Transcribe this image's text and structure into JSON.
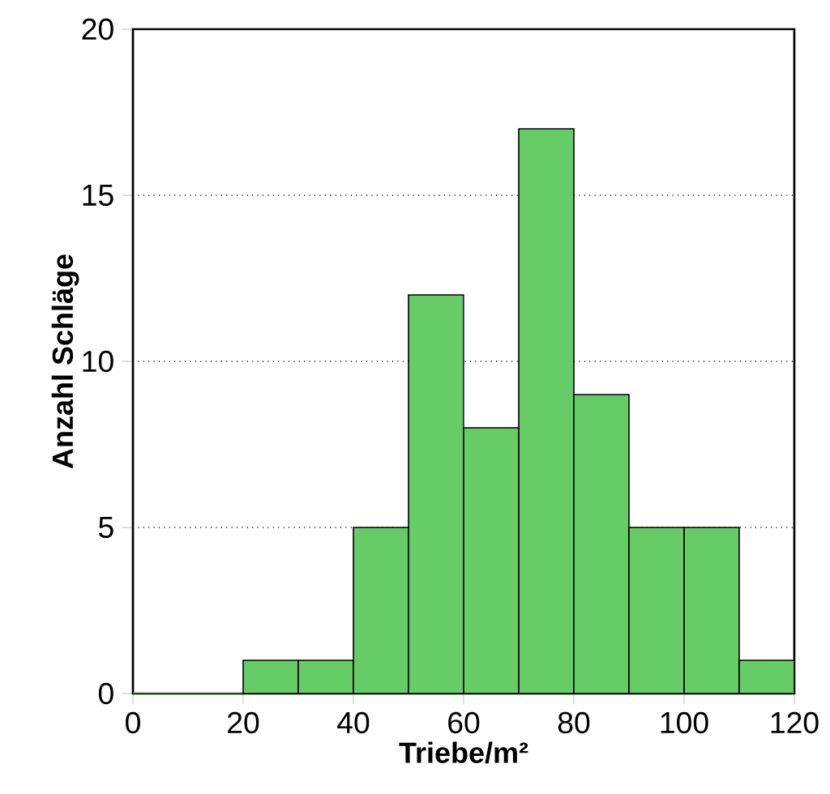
{
  "chart_data": {
    "type": "histogram",
    "xlabel": "Triebe/m²",
    "ylabel": "Anzahl Schläge",
    "bins": [
      0,
      10,
      20,
      30,
      40,
      50,
      60,
      70,
      80,
      90,
      100,
      110,
      120
    ],
    "values": [
      0,
      0,
      1,
      1,
      5,
      12,
      8,
      17,
      9,
      5,
      5,
      1
    ],
    "color": "#66cc66",
    "xlim": [
      0,
      120
    ],
    "xticks": [
      0,
      20,
      40,
      60,
      80,
      100,
      120
    ],
    "ylim": [
      0,
      20
    ],
    "yticks": [
      0,
      5,
      10,
      15,
      20
    ],
    "grid": "y"
  }
}
